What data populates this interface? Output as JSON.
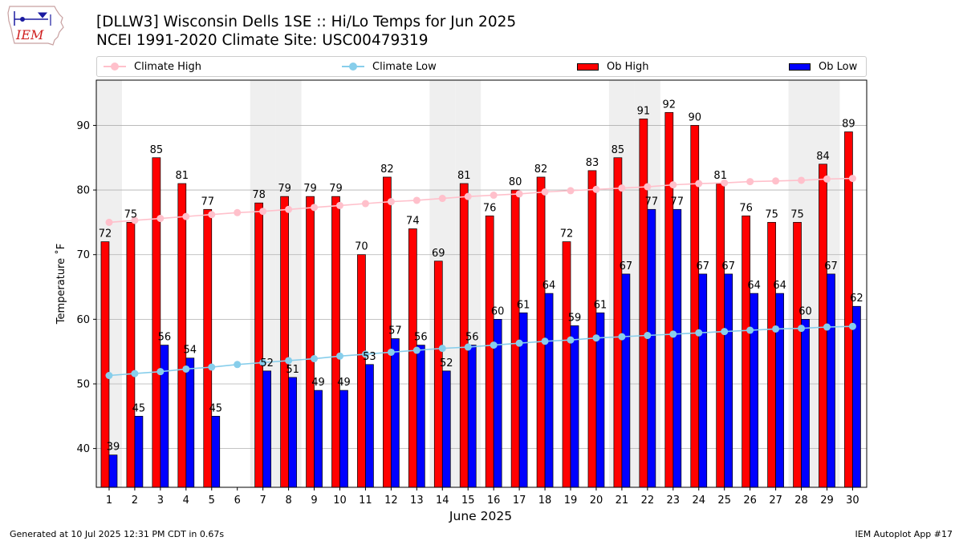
{
  "header": {
    "title": "[DLLW3] Wisconsin Dells 1SE :: Hi/Lo Temps for Jun 2025",
    "subtitle": "NCEI 1991-2020 Climate Site: USC00479319",
    "logo_text": "IEM"
  },
  "footer": {
    "left": "Generated at 10 Jul 2025 12:31 PM CDT in 0.67s",
    "right": "IEM Autoplot App #17"
  },
  "legend": [
    {
      "label": "Climate High",
      "color": "#ffc0cb",
      "kind": "line"
    },
    {
      "label": "Climate Low",
      "color": "#87ceeb",
      "kind": "line"
    },
    {
      "label": "Ob High",
      "color": "#ff0000",
      "kind": "bar"
    },
    {
      "label": "Ob Low",
      "color": "#0000ff",
      "kind": "bar"
    }
  ],
  "chart_data": {
    "type": "bar",
    "xlabel": "June 2025",
    "ylabel": "Temperature ˚F",
    "ylim": [
      34,
      97
    ],
    "yticks": [
      40,
      50,
      60,
      70,
      80,
      90
    ],
    "grid": "horizontal",
    "legend_position": "top",
    "categories": [
      "1",
      "2",
      "3",
      "4",
      "5",
      "6",
      "7",
      "8",
      "9",
      "10",
      "11",
      "12",
      "13",
      "14",
      "15",
      "16",
      "17",
      "18",
      "19",
      "20",
      "21",
      "22",
      "23",
      "24",
      "25",
      "26",
      "27",
      "28",
      "29",
      "30"
    ],
    "weekend_shading": [
      "1",
      "7",
      "8",
      "14",
      "15",
      "21",
      "22",
      "28",
      "29"
    ],
    "series": [
      {
        "name": "Ob High",
        "type": "bar",
        "color": "#ff0000",
        "values": [
          72,
          75,
          85,
          81,
          77,
          null,
          78,
          79,
          79,
          79,
          70,
          82,
          74,
          69,
          81,
          76,
          80,
          82,
          72,
          83,
          85,
          91,
          92,
          90,
          81,
          76,
          75,
          75,
          84,
          89
        ]
      },
      {
        "name": "Ob Low",
        "type": "bar",
        "color": "#0000ff",
        "values": [
          39,
          45,
          56,
          54,
          45,
          null,
          52,
          51,
          49,
          49,
          53,
          57,
          56,
          52,
          56,
          60,
          61,
          64,
          59,
          61,
          67,
          77,
          77,
          67,
          67,
          64,
          64,
          60,
          67,
          62
        ]
      },
      {
        "name": "Climate High",
        "type": "line",
        "color": "#ffc0cb",
        "values": [
          75.0,
          75.3,
          75.6,
          75.9,
          76.2,
          76.5,
          76.7,
          77.0,
          77.3,
          77.6,
          77.9,
          78.2,
          78.4,
          78.7,
          79.0,
          79.2,
          79.4,
          79.7,
          79.9,
          80.1,
          80.3,
          80.5,
          80.8,
          81.0,
          81.1,
          81.3,
          81.4,
          81.5,
          81.7,
          81.8
        ]
      },
      {
        "name": "Climate Low",
        "type": "line",
        "color": "#87ceeb",
        "values": [
          51.3,
          51.6,
          51.9,
          52.3,
          52.6,
          53.0,
          53.3,
          53.6,
          53.9,
          54.3,
          54.6,
          54.9,
          55.2,
          55.5,
          55.7,
          56.0,
          56.3,
          56.6,
          56.8,
          57.1,
          57.3,
          57.5,
          57.7,
          57.9,
          58.1,
          58.3,
          58.5,
          58.6,
          58.8,
          58.9
        ]
      }
    ]
  }
}
